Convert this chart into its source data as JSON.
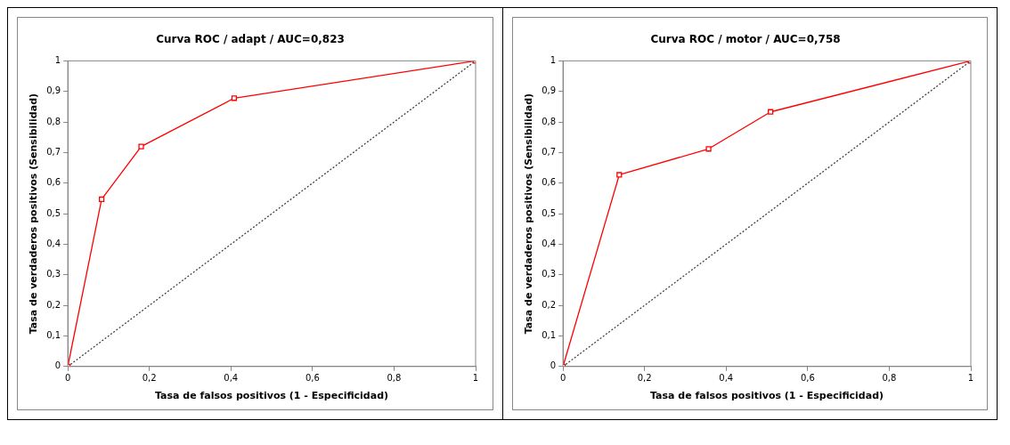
{
  "chart_data": [
    {
      "type": "line",
      "title": "Curva ROC / adapt / AUC=0,823",
      "xlabel": "Tasa de falsos positivos (1 - Especificidad)",
      "ylabel": "Tasa de verdaderos positivos (Sensibilidad)",
      "xlim": [
        0,
        1
      ],
      "xticks": [
        {
          "value": 0,
          "label": "0"
        },
        {
          "value": 0.2,
          "label": "0,2"
        },
        {
          "value": 0.4,
          "label": "0,4"
        },
        {
          "value": 0.6,
          "label": "0,6"
        },
        {
          "value": 0.8,
          "label": "0,8"
        },
        {
          "value": 1,
          "label": "1"
        }
      ],
      "ylim": [
        0,
        1
      ],
      "yticks": [
        {
          "value": 0,
          "label": "0"
        },
        {
          "value": 0.1,
          "label": "0,1"
        },
        {
          "value": 0.2,
          "label": "0,2"
        },
        {
          "value": 0.3,
          "label": "0,3"
        },
        {
          "value": 0.4,
          "label": "0,4"
        },
        {
          "value": 0.5,
          "label": "0,5"
        },
        {
          "value": 0.6,
          "label": "0,6"
        },
        {
          "value": 0.7,
          "label": "0,7"
        },
        {
          "value": 0.8,
          "label": "0,8"
        },
        {
          "value": 0.9,
          "label": "0,9"
        },
        {
          "value": 1,
          "label": "1"
        }
      ],
      "grid": false,
      "legend": false,
      "marker": "square",
      "series": [
        {
          "color": "#ff0000",
          "x": [
            0,
            0.083,
            0.18,
            0.408,
            1
          ],
          "values": [
            0,
            0.547,
            0.72,
            0.878,
            1
          ]
        },
        {
          "color": "#404040",
          "x": [
            0,
            1
          ],
          "values": [
            0,
            1
          ],
          "line_style": "dotted",
          "marker": "none"
        }
      ]
    },
    {
      "type": "line",
      "title": "Curva ROC / motor / AUC=0,758",
      "xlabel": "Tasa de falsos positivos (1 - Especificidad)",
      "ylabel": "Tasa de verdaderos positivos (Sensibilidad)",
      "xlim": [
        0,
        1
      ],
      "xticks": [
        {
          "value": 0,
          "label": "0"
        },
        {
          "value": 0.2,
          "label": "0,2"
        },
        {
          "value": 0.4,
          "label": "0,4"
        },
        {
          "value": 0.6,
          "label": "0,6"
        },
        {
          "value": 0.8,
          "label": "0,8"
        },
        {
          "value": 1,
          "label": "1"
        }
      ],
      "ylim": [
        0,
        1
      ],
      "yticks": [
        {
          "value": 0,
          "label": "0"
        },
        {
          "value": 0.1,
          "label": "0,1"
        },
        {
          "value": 0.2,
          "label": "0,2"
        },
        {
          "value": 0.3,
          "label": "0,3"
        },
        {
          "value": 0.4,
          "label": "0,4"
        },
        {
          "value": 0.5,
          "label": "0,5"
        },
        {
          "value": 0.6,
          "label": "0,6"
        },
        {
          "value": 0.7,
          "label": "0,7"
        },
        {
          "value": 0.8,
          "label": "0,8"
        },
        {
          "value": 0.9,
          "label": "0,9"
        },
        {
          "value": 1,
          "label": "1"
        }
      ],
      "grid": false,
      "legend": false,
      "marker": "square",
      "series": [
        {
          "color": "#ff0000",
          "x": [
            0,
            0.138,
            0.357,
            0.509,
            1
          ],
          "values": [
            0,
            0.627,
            0.712,
            0.833,
            1
          ]
        },
        {
          "color": "#404040",
          "x": [
            0,
            1
          ],
          "values": [
            0,
            1
          ],
          "line_style": "dotted",
          "marker": "none"
        }
      ]
    }
  ]
}
